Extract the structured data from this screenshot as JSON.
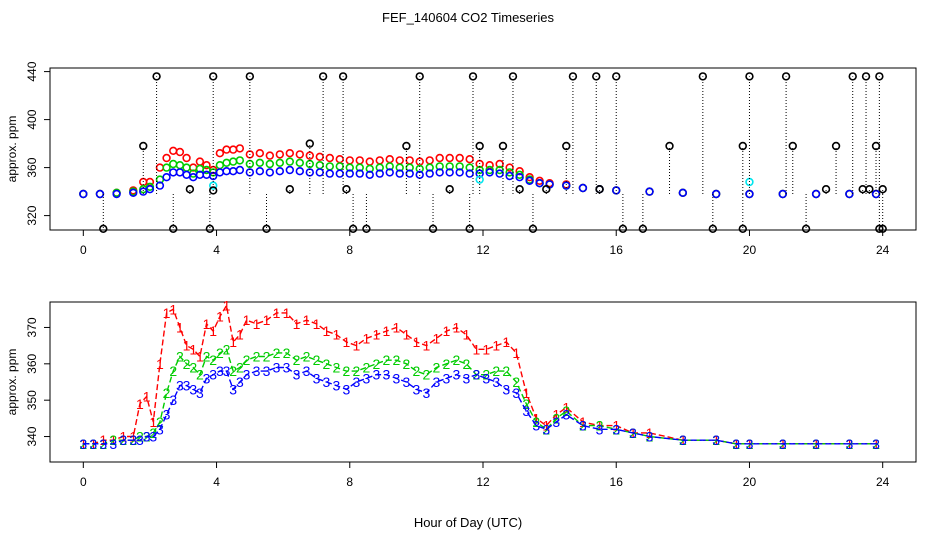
{
  "chart_data": [
    {
      "type": "scatter",
      "title": "FEF_140604  CO2 Timeseries",
      "ylabel": "approx. ppm",
      "xlim": [
        -1,
        25
      ],
      "ylim": [
        308,
        443
      ],
      "xticks": [
        0,
        4,
        8,
        12,
        16,
        20,
        24
      ],
      "yticks": [
        320,
        360,
        400,
        440
      ],
      "grid": false,
      "legend": "none",
      "series": [
        {
          "color": "#ff0000",
          "marker": "circle",
          "x": [
            0.0,
            0.5,
            1.0,
            1.5,
            1.8,
            2.0,
            2.3,
            2.5,
            2.7,
            2.9,
            3.1,
            3.3,
            3.5,
            3.7,
            3.9,
            4.1,
            4.3,
            4.5,
            4.7,
            5.0,
            5.3,
            5.6,
            5.9,
            6.2,
            6.5,
            6.8,
            7.1,
            7.4,
            7.7,
            8.0,
            8.3,
            8.6,
            8.9,
            9.2,
            9.5,
            9.8,
            10.1,
            10.4,
            10.7,
            11.0,
            11.3,
            11.6,
            11.9,
            12.2,
            12.5,
            12.8,
            13.1,
            13.4,
            13.7,
            14.0,
            14.5,
            15.0,
            15.5,
            16.0,
            17.0,
            18.0,
            19.0,
            20.0,
            21.0,
            22.0,
            23.0,
            23.8
          ],
          "y": [
            338,
            338,
            339,
            341,
            348,
            348,
            360,
            368,
            374,
            373,
            368,
            360,
            365,
            362,
            358,
            372,
            375,
            375,
            376,
            371,
            372,
            370,
            371,
            372,
            371,
            370,
            369,
            368,
            367,
            366,
            366,
            365,
            366,
            367,
            366,
            366,
            365,
            366,
            368,
            368,
            368,
            367,
            363,
            362,
            363,
            360,
            357,
            352,
            349,
            347,
            346,
            343,
            342,
            341,
            340,
            339,
            338,
            338,
            338,
            338,
            338,
            338
          ]
        },
        {
          "color": "#00cc00",
          "marker": "circle",
          "x": [
            0.0,
            0.5,
            1.0,
            1.5,
            1.8,
            2.0,
            2.3,
            2.5,
            2.7,
            2.9,
            3.1,
            3.3,
            3.5,
            3.7,
            3.9,
            4.1,
            4.3,
            4.5,
            4.7,
            5.0,
            5.3,
            5.6,
            5.9,
            6.2,
            6.5,
            6.8,
            7.1,
            7.4,
            7.7,
            8.0,
            8.3,
            8.6,
            8.9,
            9.2,
            9.5,
            9.8,
            10.1,
            10.4,
            10.7,
            11.0,
            11.3,
            11.6,
            11.9,
            12.2,
            12.5,
            12.8,
            13.1,
            13.4,
            13.7,
            14.0,
            14.5,
            15.0,
            15.5,
            16.0,
            17.0,
            18.0,
            19.0,
            20.0,
            21.0,
            22.0,
            23.0,
            23.8
          ],
          "y": [
            338,
            338,
            339,
            340,
            342,
            344,
            350,
            360,
            363,
            362,
            360,
            355,
            359,
            358,
            356,
            362,
            364,
            365,
            366,
            363,
            364,
            363,
            364,
            365,
            364,
            363,
            362,
            361,
            361,
            360,
            360,
            359,
            360,
            361,
            360,
            360,
            359,
            360,
            361,
            361,
            361,
            360,
            358,
            358,
            358,
            356,
            354,
            350,
            347,
            346,
            345,
            343,
            342,
            341,
            340,
            339,
            338,
            338,
            338,
            338,
            338,
            338
          ]
        },
        {
          "color": "#0000ff",
          "marker": "circle",
          "x": [
            0.0,
            0.5,
            1.0,
            1.5,
            1.8,
            2.0,
            2.3,
            2.5,
            2.7,
            2.9,
            3.1,
            3.3,
            3.5,
            3.7,
            3.9,
            4.1,
            4.3,
            4.5,
            4.7,
            5.0,
            5.3,
            5.6,
            5.9,
            6.2,
            6.5,
            6.8,
            7.1,
            7.4,
            7.7,
            8.0,
            8.3,
            8.6,
            8.9,
            9.2,
            9.5,
            9.8,
            10.1,
            10.4,
            10.7,
            11.0,
            11.3,
            11.6,
            11.9,
            12.2,
            12.5,
            12.8,
            13.1,
            13.4,
            13.7,
            14.0,
            14.5,
            15.0,
            15.5,
            16.0,
            17.0,
            18.0,
            19.0,
            20.0,
            21.0,
            22.0,
            23.0,
            23.8
          ],
          "y": [
            338,
            338,
            338,
            339,
            340,
            342,
            345,
            352,
            356,
            356,
            354,
            352,
            354,
            354,
            353,
            356,
            357,
            357,
            358,
            356,
            357,
            356,
            357,
            358,
            357,
            356,
            356,
            355,
            355,
            355,
            355,
            354,
            355,
            356,
            355,
            355,
            354,
            355,
            356,
            356,
            356,
            355,
            355,
            356,
            355,
            353,
            352,
            349,
            347,
            346,
            345,
            343,
            342,
            341,
            340,
            339,
            338,
            338,
            338,
            338,
            338,
            338
          ]
        },
        {
          "color": "#00e5ee",
          "marker": "circle",
          "x": [
            3.9,
            11.9,
            20.0
          ],
          "y": [
            345,
            350,
            348
          ]
        },
        {
          "color": "#000000",
          "marker": "circle",
          "x": [
            0.6,
            2.2,
            2.7,
            1.8,
            3.2,
            3.8,
            3.9,
            3.9,
            5.0,
            5.5,
            6.2,
            6.8,
            7.2,
            7.8,
            7.9,
            8.1,
            8.5,
            9.7,
            10.1,
            10.5,
            11.0,
            11.6,
            11.7,
            11.9,
            12.6,
            12.9,
            13.1,
            13.5,
            13.9,
            14.5,
            14.7,
            15.4,
            15.5,
            16.0,
            16.2,
            16.8,
            17.6,
            18.6,
            18.9,
            19.8,
            19.8,
            20.0,
            21.1,
            21.3,
            21.7,
            22.3,
            22.6,
            23.1,
            23.4,
            23.5,
            23.6,
            23.8,
            23.9,
            23.9,
            24.0,
            24.0
          ],
          "y": [
            309,
            436,
            309,
            378,
            342,
            309,
            341,
            436,
            436,
            309,
            342,
            380,
            436,
            436,
            342,
            309,
            309,
            378,
            436,
            309,
            342,
            309,
            436,
            378,
            378,
            436,
            342,
            309,
            342,
            378,
            436,
            436,
            342,
            436,
            309,
            309,
            378,
            436,
            309,
            309,
            378,
            436,
            436,
            378,
            309,
            342,
            378,
            436,
            342,
            436,
            342,
            378,
            436,
            309,
            342,
            309
          ]
        }
      ]
    },
    {
      "type": "scatter",
      "title": "",
      "xlabel": "Hour of Day (UTC)",
      "ylabel": "approx. ppm",
      "xlim": [
        -1,
        25
      ],
      "ylim": [
        333,
        377
      ],
      "xticks": [
        0,
        4,
        8,
        12,
        16,
        20,
        24
      ],
      "yticks": [
        340,
        350,
        360,
        370
      ],
      "grid": false,
      "legend": "none",
      "series": [
        {
          "color": "#ff0000",
          "marker": "1",
          "x": [
            0.0,
            0.3,
            0.6,
            0.9,
            1.2,
            1.5,
            1.7,
            1.9,
            2.1,
            2.3,
            2.5,
            2.7,
            2.9,
            3.1,
            3.3,
            3.5,
            3.7,
            3.9,
            4.1,
            4.3,
            4.5,
            4.7,
            4.9,
            5.2,
            5.5,
            5.8,
            6.1,
            6.4,
            6.7,
            7.0,
            7.3,
            7.6,
            7.9,
            8.2,
            8.5,
            8.8,
            9.1,
            9.4,
            9.7,
            10.0,
            10.3,
            10.6,
            10.9,
            11.2,
            11.5,
            11.8,
            12.1,
            12.4,
            12.7,
            13.0,
            13.3,
            13.6,
            13.9,
            14.2,
            14.5,
            15.0,
            15.5,
            16.0,
            16.5,
            17.0,
            18.0,
            19.0,
            19.6,
            20.0,
            21.0,
            22.0,
            23.0,
            23.8
          ],
          "y": [
            338,
            338,
            339,
            339,
            340,
            340,
            349,
            351,
            344,
            360,
            374,
            375,
            370,
            365,
            364,
            362,
            371,
            369,
            373,
            376,
            366,
            368,
            372,
            371,
            372,
            374,
            374,
            371,
            372,
            371,
            369,
            368,
            366,
            365,
            367,
            368,
            369,
            370,
            368,
            366,
            365,
            367,
            369,
            370,
            368,
            364,
            364,
            365,
            366,
            363,
            352,
            345,
            343,
            346,
            348,
            344,
            343,
            343,
            341,
            341,
            339,
            339,
            338,
            338,
            338,
            338,
            338,
            338
          ]
        },
        {
          "color": "#00cc00",
          "marker": "2",
          "x": [
            0.0,
            0.3,
            0.6,
            0.9,
            1.2,
            1.5,
            1.7,
            1.9,
            2.1,
            2.3,
            2.5,
            2.7,
            2.9,
            3.1,
            3.3,
            3.5,
            3.7,
            3.9,
            4.1,
            4.3,
            4.5,
            4.7,
            4.9,
            5.2,
            5.5,
            5.8,
            6.1,
            6.4,
            6.7,
            7.0,
            7.3,
            7.6,
            7.9,
            8.2,
            8.5,
            8.8,
            9.1,
            9.4,
            9.7,
            10.0,
            10.3,
            10.6,
            10.9,
            11.2,
            11.5,
            11.8,
            12.1,
            12.4,
            12.7,
            13.0,
            13.3,
            13.6,
            13.9,
            14.2,
            14.5,
            15.0,
            15.5,
            16.0,
            16.5,
            17.0,
            18.0,
            19.0,
            19.6,
            20.0,
            21.0,
            22.0,
            23.0,
            23.8
          ],
          "y": [
            338,
            338,
            338,
            339,
            339,
            339,
            340,
            340,
            341,
            344,
            352,
            358,
            362,
            360,
            359,
            357,
            362,
            361,
            363,
            364,
            358,
            359,
            361,
            362,
            362,
            363,
            363,
            361,
            362,
            361,
            360,
            359,
            358,
            358,
            359,
            360,
            361,
            361,
            360,
            358,
            357,
            359,
            360,
            361,
            360,
            357,
            357,
            358,
            358,
            355,
            349,
            344,
            342,
            345,
            347,
            343,
            343,
            342,
            341,
            340,
            339,
            339,
            338,
            338,
            338,
            338,
            338,
            338
          ]
        },
        {
          "color": "#0000ff",
          "marker": "3",
          "x": [
            0.0,
            0.3,
            0.6,
            0.9,
            1.2,
            1.5,
            1.7,
            1.9,
            2.1,
            2.3,
            2.5,
            2.7,
            2.9,
            3.1,
            3.3,
            3.5,
            3.7,
            3.9,
            4.1,
            4.3,
            4.5,
            4.7,
            4.9,
            5.2,
            5.5,
            5.8,
            6.1,
            6.4,
            6.7,
            7.0,
            7.3,
            7.6,
            7.9,
            8.2,
            8.5,
            8.8,
            9.1,
            9.4,
            9.7,
            10.0,
            10.3,
            10.6,
            10.9,
            11.2,
            11.5,
            11.8,
            12.1,
            12.4,
            12.7,
            13.0,
            13.3,
            13.6,
            13.9,
            14.2,
            14.5,
            15.0,
            15.5,
            16.0,
            16.5,
            17.0,
            18.0,
            19.0,
            19.6,
            20.0,
            21.0,
            22.0,
            23.0,
            23.8
          ],
          "y": [
            338,
            338,
            338,
            338,
            339,
            339,
            339,
            340,
            340,
            342,
            346,
            350,
            354,
            354,
            353,
            352,
            356,
            357,
            358,
            358,
            353,
            355,
            357,
            358,
            358,
            359,
            359,
            357,
            358,
            356,
            355,
            354,
            353,
            355,
            356,
            357,
            357,
            356,
            355,
            353,
            352,
            355,
            356,
            357,
            356,
            357,
            356,
            355,
            353,
            352,
            347,
            343,
            342,
            344,
            346,
            343,
            342,
            342,
            341,
            340,
            339,
            339,
            338,
            338,
            338,
            338,
            338,
            338
          ]
        }
      ]
    }
  ]
}
